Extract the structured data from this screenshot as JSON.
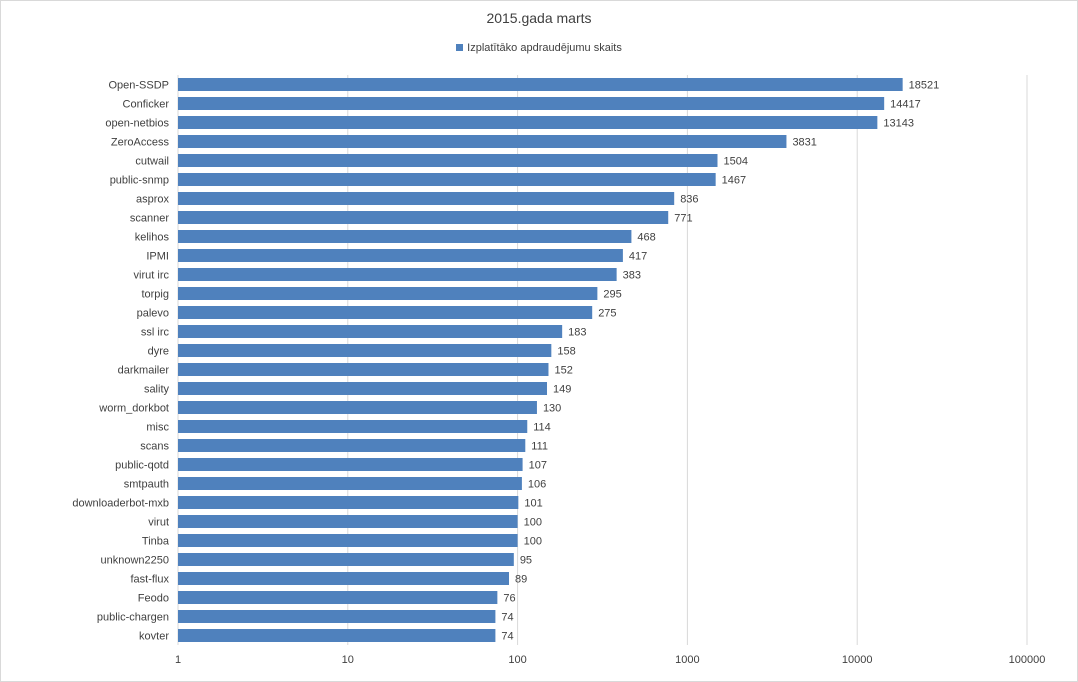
{
  "chart_data": {
    "type": "bar",
    "orientation": "horizontal",
    "title": "2015.gada marts",
    "xscale": "log",
    "xlim": [
      1,
      100000
    ],
    "xticks": [
      "1",
      "10",
      "100",
      "1000",
      "10000",
      "100000"
    ],
    "grid": true,
    "legend_position": "top",
    "bar_color": "#4f81bd",
    "series": [
      {
        "name": "Izplatītāko apdraudējumu skaits",
        "values": [
          18521,
          14417,
          13143,
          3831,
          1504,
          1467,
          836,
          771,
          468,
          417,
          383,
          295,
          275,
          183,
          158,
          152,
          149,
          130,
          114,
          111,
          107,
          106,
          101,
          100,
          100,
          95,
          89,
          76,
          74,
          74
        ]
      }
    ],
    "categories": [
      "Open-SSDP",
      "Conficker",
      "open-netbios",
      "ZeroAccess",
      "cutwail",
      "public-snmp",
      "asprox",
      "scanner",
      "kelihos",
      "IPMI",
      "virut irc",
      "torpig",
      "palevo",
      "ssl irc",
      "dyre",
      "darkmailer",
      "sality",
      "worm_dorkbot",
      "misc",
      "scans",
      "public-qotd",
      "smtpauth",
      "downloaderbot-mxb",
      "virut",
      "Tinba",
      "unknown2250",
      "fast-flux",
      "Feodo",
      "public-chargen",
      "kovter"
    ]
  }
}
